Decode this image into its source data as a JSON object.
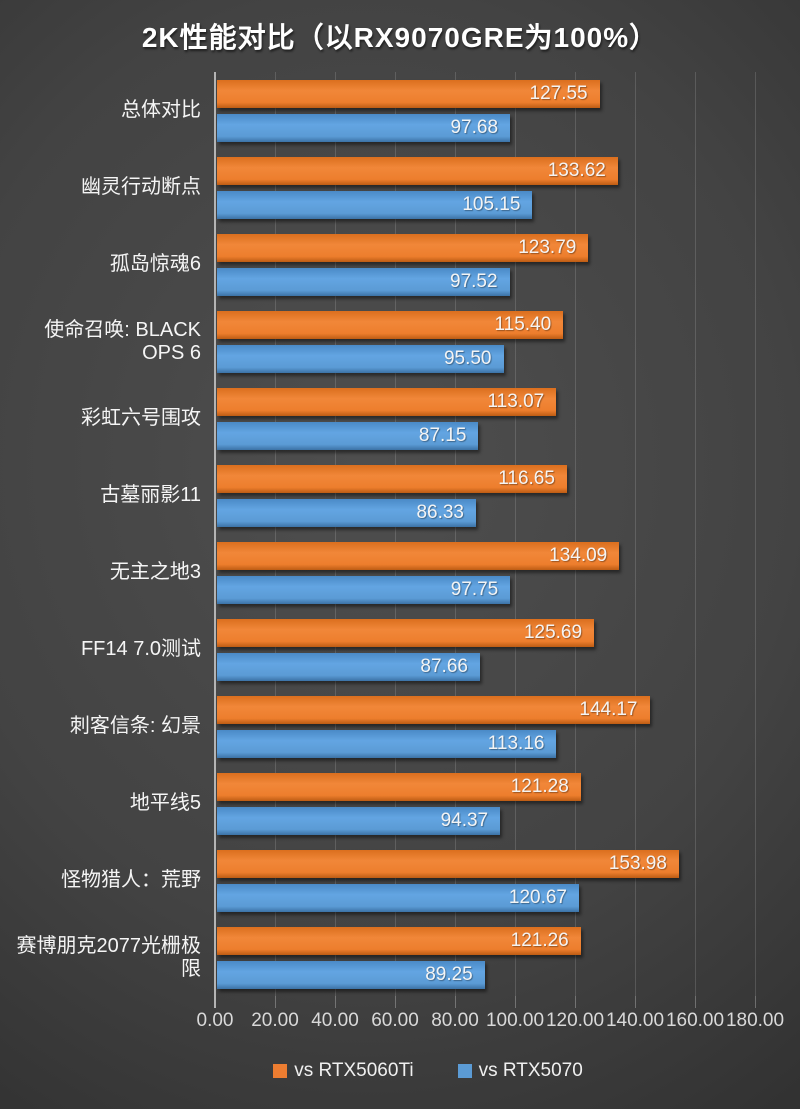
{
  "chart_data": {
    "type": "bar",
    "orientation": "horizontal",
    "title": "2K性能对比（以RX9070GRE为100%）",
    "categories": [
      "总体对比",
      "幽灵行动断点",
      "孤岛惊魂6",
      "使命召唤: BLACK OPS 6",
      "彩虹六号围攻",
      "古墓丽影11",
      "无主之地3",
      "FF14 7.0测试",
      "刺客信条: 幻景",
      "地平线5",
      "怪物猎人：荒野",
      "赛博朋克2077光栅极限"
    ],
    "series": [
      {
        "name": "vs RTX5060Ti",
        "color": "#ED7D31",
        "values": [
          127.55,
          133.62,
          123.79,
          115.4,
          113.07,
          116.65,
          134.09,
          125.69,
          144.17,
          121.28,
          153.98,
          121.26
        ]
      },
      {
        "name": "vs RTX5070",
        "color": "#5B9BD5",
        "values": [
          97.68,
          105.15,
          97.52,
          95.5,
          87.15,
          86.33,
          97.75,
          87.66,
          113.16,
          94.37,
          120.67,
          89.25
        ]
      }
    ],
    "xlim": [
      0,
      180
    ],
    "xticks": [
      "0.00",
      "20.00",
      "40.00",
      "60.00",
      "80.00",
      "100.00",
      "120.00",
      "140.00",
      "160.00",
      "180.00"
    ],
    "value_decimals": 2,
    "grid": true,
    "legend_position": "bottom",
    "background_color": "#3f3f3f",
    "text_color": "#f2f2f2"
  }
}
